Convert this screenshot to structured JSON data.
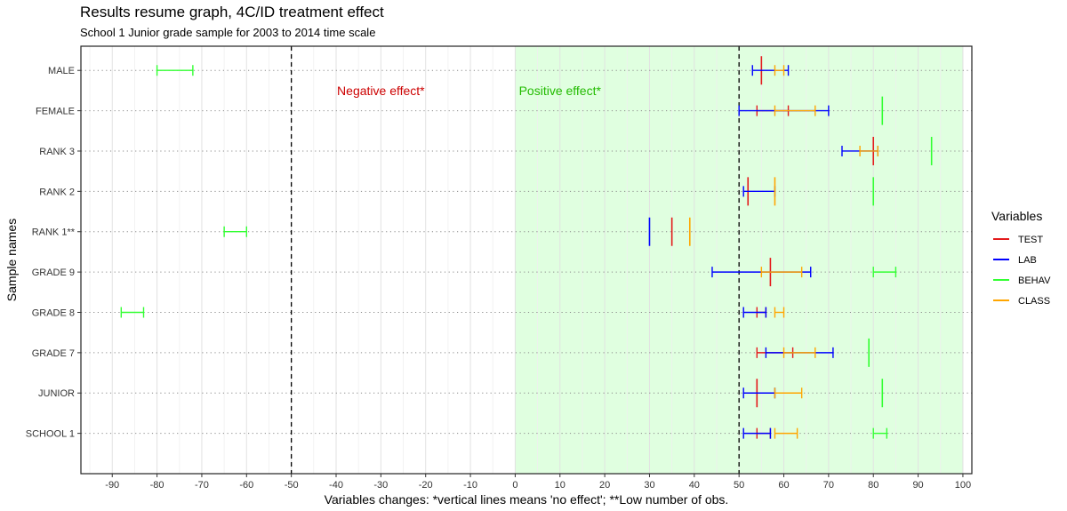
{
  "chart_data": {
    "type": "errorbar",
    "title": "Results resume graph, 4C/ID treatment effect",
    "subtitle": "School 1 Junior grade sample for 2003 to 2014 time scale",
    "xlabel": "Variables changes: *vertical lines means 'no effect'; **Low number of obs.",
    "ylabel": "Sample names",
    "xlim": [
      -97,
      102
    ],
    "x_ticks": [
      -90,
      -80,
      -70,
      -60,
      -50,
      -40,
      -30,
      -20,
      -10,
      0,
      10,
      20,
      30,
      40,
      50,
      60,
      70,
      80,
      90,
      100
    ],
    "categories": [
      "MALE",
      "FEMALE",
      "RANK 3",
      "RANK 2",
      "RANK 1**",
      "GRADE 9",
      "GRADE 8",
      "GRADE 7",
      "JUNIOR",
      "SCHOOL 1"
    ],
    "reference_lines": [
      -50,
      50
    ],
    "shaded_region": {
      "from": 0,
      "to": 100,
      "color": "#e0ffe0"
    },
    "grid": true,
    "legend": {
      "title": "Variables",
      "position": "right"
    },
    "annotations": [
      {
        "text": "Negative effect*",
        "x": -30,
        "category": "MALE",
        "color": "#cc0000"
      },
      {
        "text": "Positive effect*",
        "x": 10,
        "category": "MALE",
        "color": "#22bb00"
      }
    ],
    "series": [
      {
        "name": "TEST",
        "color": "#e41a1c",
        "intervals": [
          [
            55,
            55
          ],
          [
            54,
            61
          ],
          [
            80,
            80
          ],
          [
            52,
            52
          ],
          [
            35,
            35
          ],
          [
            57,
            57
          ],
          [
            54,
            56
          ],
          [
            54,
            62
          ],
          [
            54,
            54
          ],
          [
            54,
            57
          ]
        ]
      },
      {
        "name": "LAB",
        "color": "#0000ff",
        "intervals": [
          [
            53,
            61
          ],
          [
            50,
            70
          ],
          [
            73,
            81
          ],
          [
            51,
            58
          ],
          [
            30,
            30
          ],
          [
            44,
            66
          ],
          [
            51,
            56
          ],
          [
            56,
            71
          ],
          [
            51,
            58
          ],
          [
            51,
            57
          ]
        ]
      },
      {
        "name": "BEHAV",
        "color": "#33ff33",
        "intervals": [
          [
            -80,
            -72
          ],
          [
            82,
            82
          ],
          [
            93,
            93
          ],
          [
            80,
            80
          ],
          [
            -65,
            -60
          ],
          [
            80,
            85
          ],
          [
            -88,
            -83
          ],
          [
            79,
            79
          ],
          [
            82,
            82
          ],
          [
            80,
            83
          ]
        ]
      },
      {
        "name": "CLASS",
        "color": "#ffa500",
        "intervals": [
          [
            58,
            60
          ],
          [
            58,
            67
          ],
          [
            77,
            81
          ],
          [
            58,
            58
          ],
          [
            39,
            39
          ],
          [
            55,
            64
          ],
          [
            58,
            60
          ],
          [
            60,
            67
          ],
          [
            58,
            64
          ],
          [
            58,
            63
          ]
        ]
      }
    ]
  }
}
